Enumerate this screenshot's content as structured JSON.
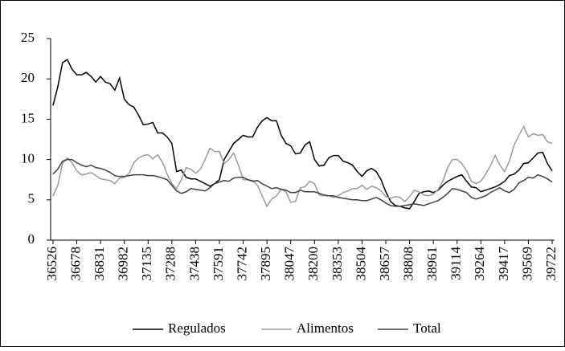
{
  "chart_data": {
    "type": "line",
    "categories": [
      36526,
      null,
      null,
      null,
      null,
      36678,
      null,
      null,
      null,
      null,
      36831,
      null,
      null,
      null,
      null,
      36982,
      null,
      null,
      null,
      null,
      37135,
      null,
      null,
      null,
      null,
      37288,
      null,
      null,
      null,
      null,
      37438,
      null,
      null,
      null,
      null,
      37591,
      null,
      null,
      null,
      null,
      37742,
      null,
      null,
      null,
      null,
      37895,
      null,
      null,
      null,
      null,
      38047,
      null,
      null,
      null,
      null,
      38200,
      null,
      null,
      null,
      null,
      38353,
      null,
      null,
      null,
      null,
      38504,
      null,
      null,
      null,
      null,
      38657,
      null,
      null,
      null,
      null,
      38808,
      null,
      null,
      null,
      null,
      38961,
      null,
      null,
      null,
      null,
      39114,
      null,
      null,
      null,
      null,
      39264,
      null,
      null,
      null,
      null,
      39417,
      null,
      null,
      null,
      null,
      39569,
      null,
      null,
      null,
      null,
      39722
    ],
    "series": [
      {
        "name": "Regulados",
        "color": "#000000",
        "values": [
          16.7,
          19,
          22,
          22.4,
          21.2,
          20.5,
          20.5,
          20.8,
          20.3,
          19.6,
          20.3,
          19.6,
          19.4,
          18.6,
          20.1,
          17.5,
          16.8,
          16.5,
          15.5,
          14.3,
          14.4,
          14.6,
          13.3,
          13.3,
          12.8,
          12,
          8.5,
          8.7,
          7.8,
          7.6,
          7.6,
          7.3,
          7,
          6.7,
          7,
          7.5,
          10,
          11,
          12,
          12.5,
          13,
          12.8,
          12.8,
          14,
          14.8,
          15.2,
          14.8,
          14.8,
          13,
          12,
          11.7,
          10.7,
          10.8,
          11.8,
          12.2,
          10,
          9.2,
          9.3,
          10.2,
          10.5,
          10.5,
          9.8,
          9.6,
          9.3,
          8.5,
          7.9,
          8.6,
          8.9,
          8.5,
          7.5,
          6,
          4.8,
          4.3,
          4.2,
          4,
          3.9,
          4.8,
          5.8,
          6,
          6.1,
          5.9,
          6.2,
          6.8,
          7.3,
          7.6,
          7.9,
          8.1,
          7.3,
          6.6,
          6.5,
          6,
          6.2,
          6.4,
          6.6,
          6.9,
          7.3,
          8,
          8.2,
          8.7,
          9.5,
          9.6,
          10.2,
          10.8,
          10.9,
          9.5,
          8.6
        ]
      },
      {
        "name": "Alimentos",
        "color": "#9a9a9a",
        "values": [
          5.5,
          6.8,
          9.5,
          10.2,
          9.6,
          8.6,
          8.1,
          8.2,
          8.4,
          8,
          7.6,
          7.5,
          7.4,
          7,
          7.7,
          7.8,
          8.3,
          9.6,
          10.2,
          10.5,
          10.6,
          10.1,
          10.6,
          9.7,
          8.2,
          7,
          6.4,
          7.5,
          9,
          8.8,
          8.3,
          8.8,
          10,
          11.4,
          11,
          11,
          9.5,
          10,
          10.8,
          9.3,
          7.5,
          7.5,
          7.4,
          6.8,
          5.5,
          4.2,
          5.1,
          5.5,
          6.3,
          6,
          4.7,
          4.8,
          6.5,
          6.6,
          7.3,
          7,
          5.6,
          5.5,
          5.5,
          5.3,
          5.5,
          5.9,
          6.1,
          6.4,
          6.4,
          6.8,
          6.3,
          6.7,
          6.5,
          6.1,
          5.4,
          5.2,
          5.4,
          5.3,
          4.8,
          5.4,
          6.2,
          6,
          5.6,
          5.5,
          5.7,
          6.3,
          7.3,
          9,
          10,
          10,
          9.5,
          8.6,
          7.3,
          7,
          7.3,
          8.2,
          9.2,
          10.5,
          9.3,
          8.5,
          9.8,
          11.8,
          13,
          14.1,
          12.8,
          13.2,
          13,
          13.1,
          12.2,
          12
        ]
      },
      {
        "name": "Total",
        "color": "#404040",
        "values": [
          8.2,
          8.8,
          9.8,
          10,
          10,
          9.6,
          9.3,
          9.1,
          9.3,
          9,
          8.9,
          8.7,
          8.4,
          8,
          7.9,
          7.9,
          8,
          8.1,
          8.1,
          8.1,
          8,
          8,
          7.9,
          7.7,
          7.5,
          6.8,
          6.1,
          5.8,
          6,
          6.4,
          6.3,
          6.2,
          6.1,
          6.5,
          7,
          7.2,
          7.4,
          7.3,
          7.7,
          7.8,
          7.8,
          7.5,
          7.3,
          7.4,
          7,
          6.7,
          6.4,
          6.5,
          6.3,
          6.2,
          5.9,
          5.9,
          6.2,
          6,
          6,
          6,
          5.8,
          5.6,
          5.5,
          5.5,
          5.3,
          5.2,
          5.1,
          5,
          5,
          4.9,
          4.9,
          5.1,
          5.3,
          5,
          4.6,
          4.3,
          4.2,
          4.2,
          4.3,
          4.4,
          4.5,
          4.4,
          4.3,
          4.5,
          4.7,
          4.9,
          5.3,
          5.8,
          6.4,
          6.3,
          6.1,
          5.9,
          5.3,
          5.1,
          5.3,
          5.5,
          5.9,
          6.2,
          6.5,
          6.1,
          5.9,
          6.3,
          7.1,
          7.4,
          7.8,
          7.7,
          8.1,
          7.9,
          7.6,
          7.2
        ]
      }
    ],
    "ylim": [
      0,
      25
    ],
    "yticks": [
      0,
      5,
      10,
      15,
      20,
      25
    ],
    "grid": false,
    "legend": "bottom"
  }
}
